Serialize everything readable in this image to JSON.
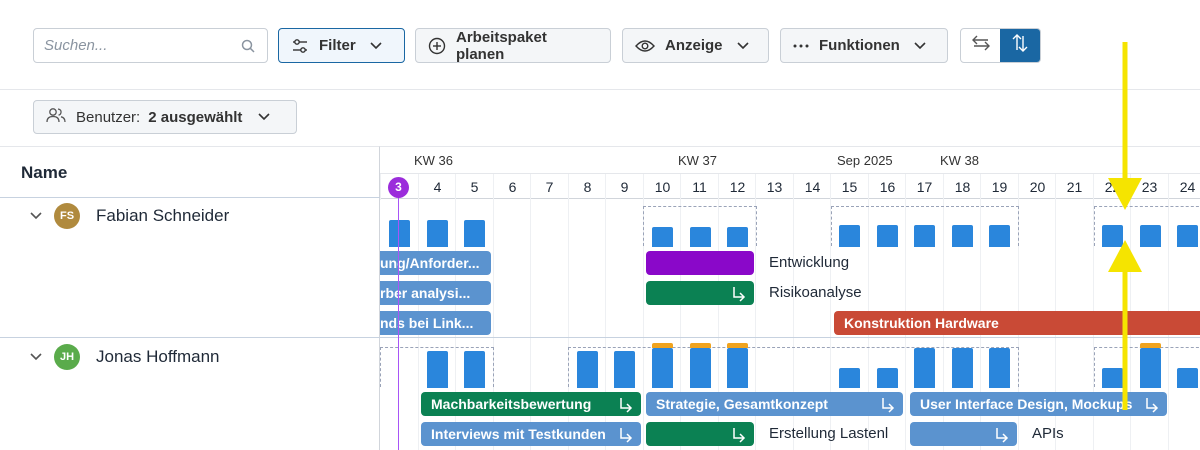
{
  "toolbar": {
    "search_placeholder": "Suchen...",
    "filter_label": "Filter",
    "plan_label": "Arbeitspaket planen",
    "display_label": "Anzeige",
    "functions_label": "Funktionen"
  },
  "user_filter": {
    "label": "Benutzer:",
    "value": "2 ausgewählt"
  },
  "table": {
    "name_header": "Name"
  },
  "timeline": {
    "weeks": [
      "KW 36",
      "KW 37",
      "Sep 2025",
      "KW 38"
    ],
    "days": [
      "3",
      "4",
      "5",
      "6",
      "7",
      "8",
      "9",
      "10",
      "11",
      "12",
      "13",
      "14",
      "15",
      "16",
      "17",
      "18",
      "19",
      "20",
      "21",
      "22",
      "23",
      "24"
    ],
    "today": "3"
  },
  "users": [
    {
      "name": "Fabian Schneider",
      "initials": "FS",
      "avatar_color": "#b08a3e",
      "tasks": [
        {
          "label": "ung/Anforder..."
        },
        {
          "label": "rber analysi..."
        },
        {
          "label": "nds bei Link..."
        },
        {
          "label": "",
          "note": "Entwicklung"
        },
        {
          "label": "",
          "note": "Risikoanalyse"
        },
        {
          "label": "Konstruktion Hardware"
        }
      ]
    },
    {
      "name": "Jonas Hoffmann",
      "initials": "JH",
      "avatar_color": "#5aab4b",
      "tasks": [
        {
          "label": "Machbarkeitsbewertung"
        },
        {
          "label": "Strategie, Gesamtkonzept"
        },
        {
          "label": "User Interface Design, Mockups"
        },
        {
          "label": "Interviews mit Testkunden"
        },
        {
          "label": "",
          "note": "Erstellung Lastenl"
        },
        {
          "label": "",
          "note": "APIs"
        }
      ]
    }
  ],
  "colors": {
    "accent": "#1a67a3",
    "workload": "#2a86dc",
    "overload": "#f0a31e",
    "annotation": "#f5e400"
  }
}
